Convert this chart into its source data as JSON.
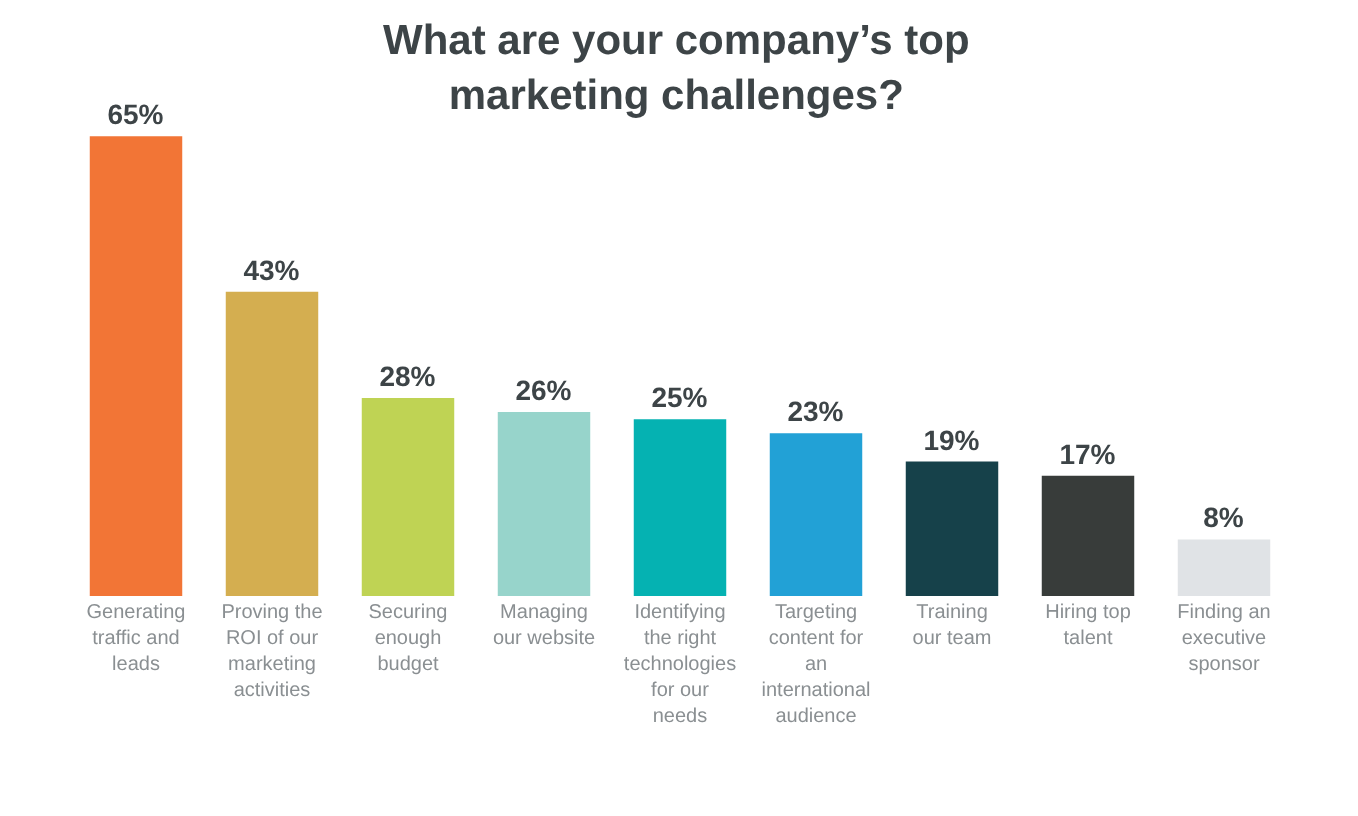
{
  "chart_data": {
    "type": "bar",
    "title": "What are your company’s top marketing challenges?",
    "categories": [
      "Generating traffic and leads",
      "Proving the ROI of our marketing activities",
      "Securing enough budget",
      "Managing our website",
      "Identifying the right technologies for our needs",
      "Targeting content for an international audience",
      "Training our team",
      "Hiring top talent",
      "Finding an executive sponsor"
    ],
    "values": [
      65,
      43,
      28,
      26,
      25,
      23,
      19,
      17,
      8
    ],
    "value_labels": [
      "65%",
      "43%",
      "28%",
      "26%",
      "25%",
      "23%",
      "19%",
      "17%",
      "8%"
    ],
    "colors": [
      "#f27536",
      "#d4ae50",
      "#bfd354",
      "#97d4cb",
      "#05b2b2",
      "#22a1d6",
      "#16414a",
      "#383c3a",
      "#e0e3e6"
    ]
  }
}
